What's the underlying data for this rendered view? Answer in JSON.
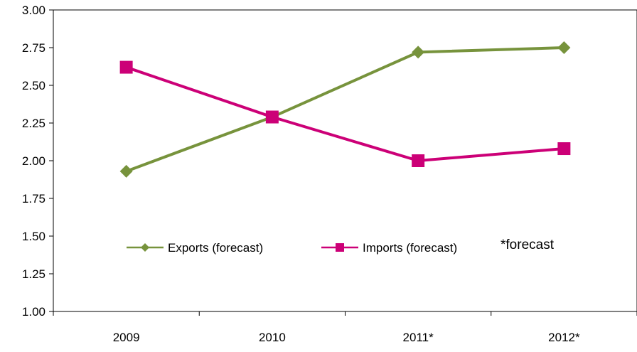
{
  "chart_data": {
    "type": "line",
    "title": "",
    "xlabel": "",
    "ylabel": "",
    "categories": [
      "2009",
      "2010",
      "2011*",
      "2012*"
    ],
    "ylim": [
      1.0,
      3.0
    ],
    "y_ticks": [
      "1.00",
      "1.25",
      "1.50",
      "1.75",
      "2.00",
      "2.25",
      "2.50",
      "2.75",
      "3.00"
    ],
    "grid": false,
    "legend_position": "bottom-center (inside plot)",
    "series": [
      {
        "name": "Exports (forecast)",
        "values": [
          1.93,
          2.29,
          2.72,
          2.75
        ],
        "color": "#77933C",
        "marker": "diamond"
      },
      {
        "name": "Imports (forecast)",
        "values": [
          2.62,
          2.29,
          2.0,
          2.08
        ],
        "color": "#CC0077",
        "marker": "square"
      }
    ],
    "annotation": "*forecast"
  }
}
